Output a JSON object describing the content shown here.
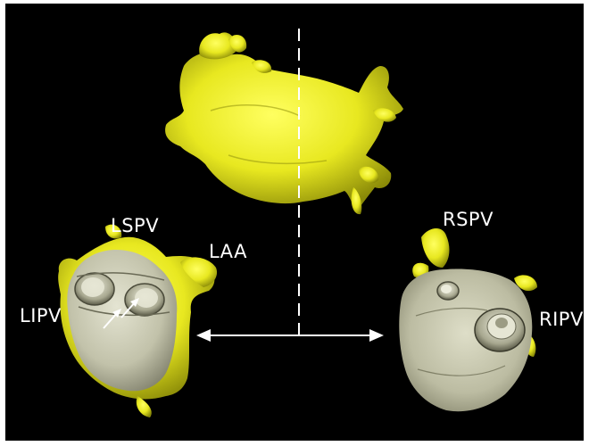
{
  "labels": {
    "lspv": "LSPV",
    "laa": "LAA",
    "lipv": "LIPV",
    "rspv": "RSPV",
    "ripv": "RIPV"
  },
  "colors": {
    "background": "#000000",
    "border": "#ffffff",
    "model_yellow": "#e8e820",
    "endo_surface": "#c8c8b0",
    "annotation": "#ffffff"
  },
  "icons": {
    "divider": "dashed-vertical-line",
    "double_arrow": "left-right-arrow",
    "ostium_arrows": "white-arrows"
  }
}
